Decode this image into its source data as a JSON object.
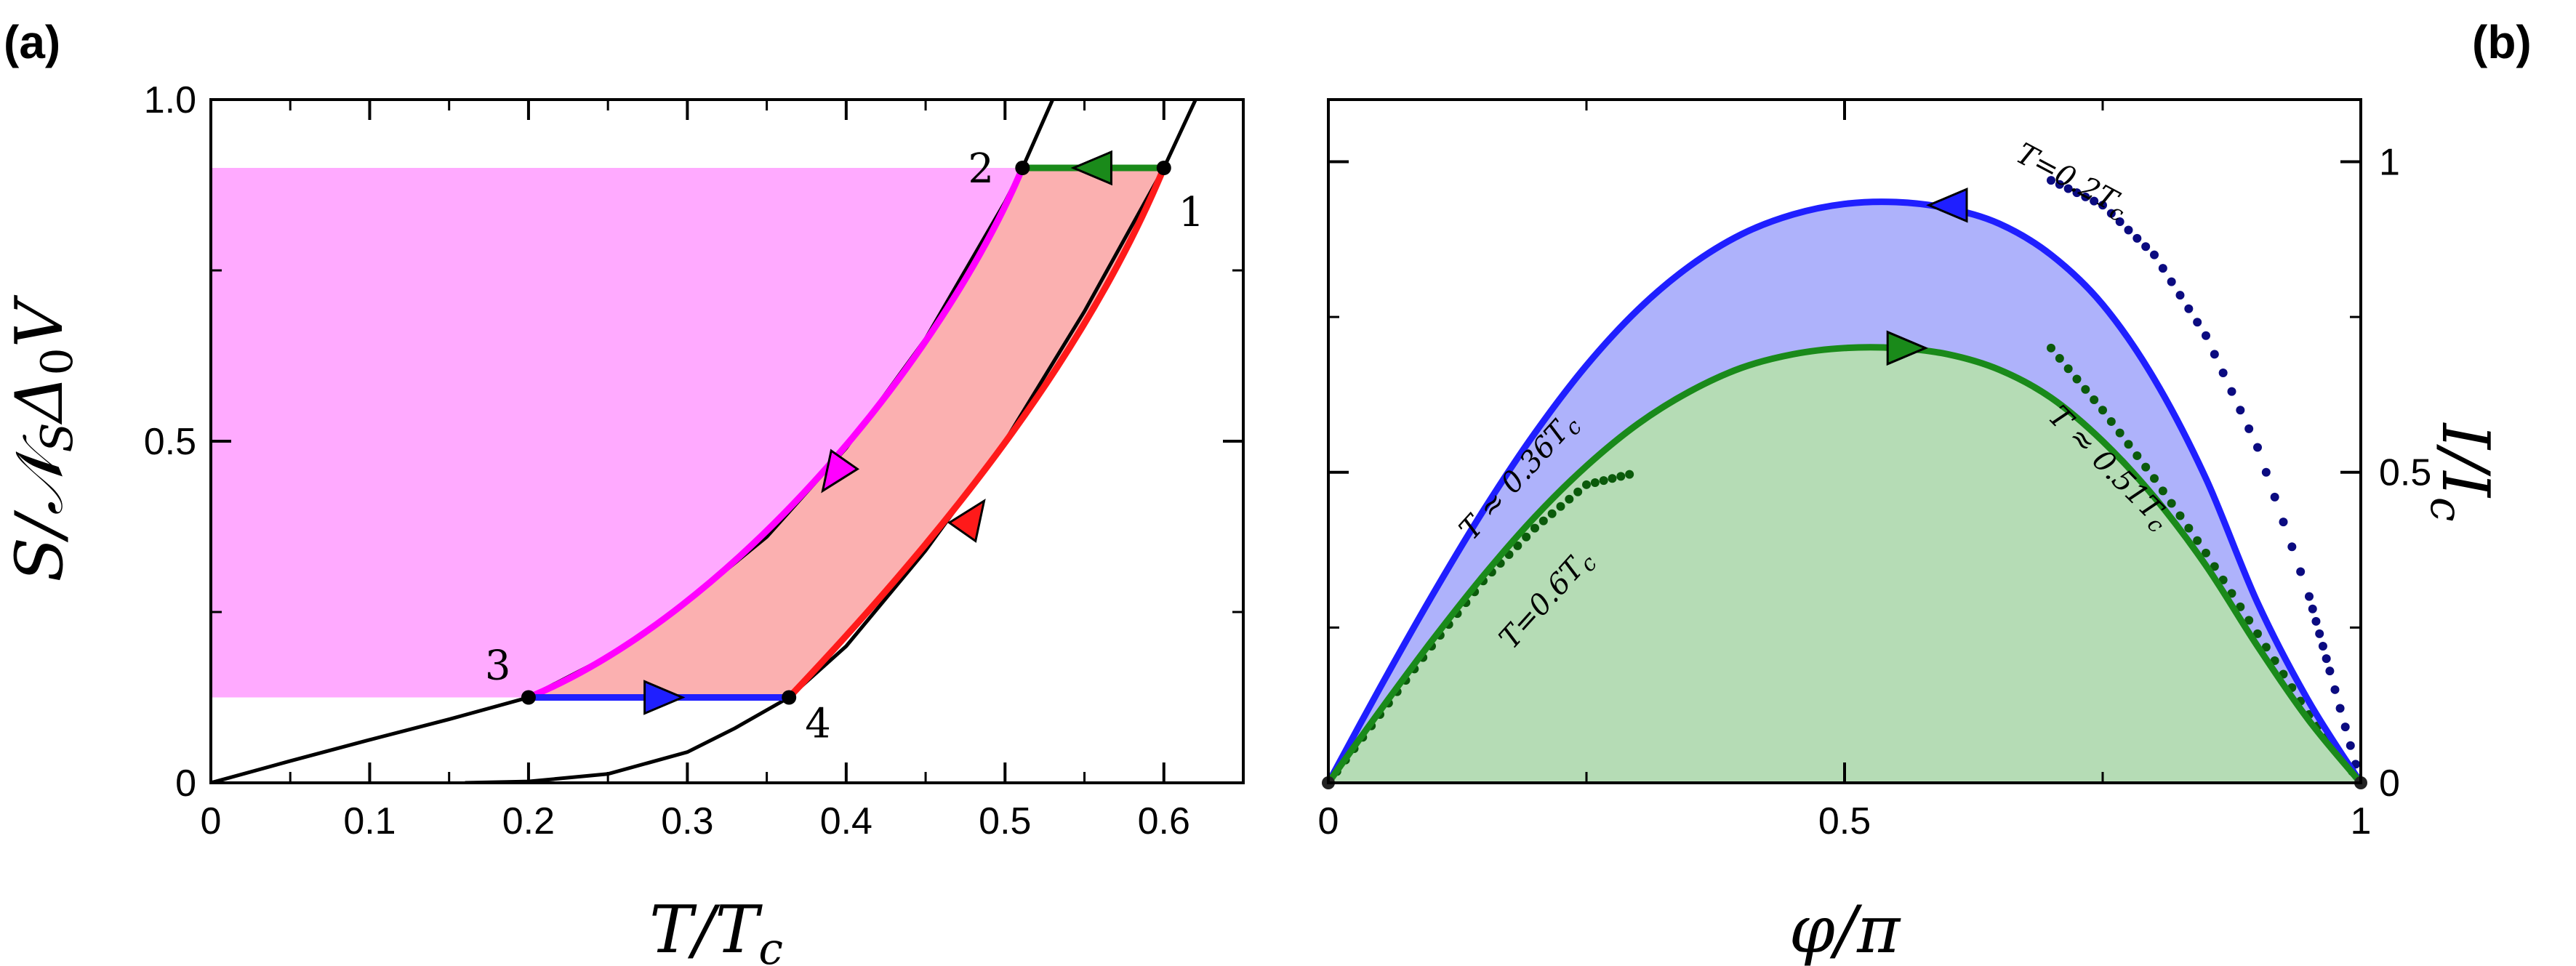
{
  "chart_data": [
    {
      "panel": "(a)",
      "type": "line",
      "xlabel": "T/T_c",
      "ylabel": "S/𝒩_S Δ₀ V",
      "xlim": [
        0,
        0.65
      ],
      "ylim": [
        0,
        1.0
      ],
      "x_ticks": [
        "0",
        "0.1",
        "0.2",
        "0.3",
        "0.4",
        "0.5",
        "0.6"
      ],
      "y_ticks": [
        "0",
        "0.5",
        "1.0"
      ],
      "series": [
        {
          "color": "#000000",
          "x": [
            0,
            0.05,
            0.1,
            0.15,
            0.2,
            0.25,
            0.3,
            0.35,
            0.4,
            0.45,
            0.5,
            0.511,
            0.53
          ],
          "y": [
            0,
            0.032,
            0.063,
            0.093,
            0.125,
            0.185,
            0.265,
            0.36,
            0.49,
            0.65,
            0.85,
            0.9,
            1.0
          ]
        },
        {
          "color": "#000000",
          "x": [
            0.16,
            0.2,
            0.25,
            0.3,
            0.33,
            0.364,
            0.4,
            0.45,
            0.5,
            0.55,
            0.6,
            0.62
          ],
          "y": [
            0,
            0.002,
            0.013,
            0.045,
            0.08,
            0.125,
            0.2,
            0.34,
            0.5,
            0.69,
            0.9,
            1.0
          ]
        }
      ],
      "cycle": {
        "points": [
          {
            "label": "1",
            "x": 0.6,
            "y": 0.9
          },
          {
            "label": "2",
            "x": 0.511,
            "y": 0.9
          },
          {
            "label": "3",
            "x": 0.2,
            "y": 0.125
          },
          {
            "label": "4",
            "x": 0.364,
            "y": 0.125
          }
        ],
        "segments": [
          {
            "from": "1",
            "to": "2",
            "color": "#1a8a1a"
          },
          {
            "from": "2",
            "to": "3",
            "color": "#ff00ff"
          },
          {
            "from": "3",
            "to": "4",
            "color": "#1f1fff"
          },
          {
            "from": "4",
            "to": "1",
            "color": "#ff1a1a"
          }
        ]
      },
      "fill_colors": {
        "magenta_region": "#ffaaff",
        "red_region": "#fbb0b0"
      }
    },
    {
      "panel": "(b)",
      "type": "line",
      "xlabel": "φ/π",
      "ylabel": "I/I_c",
      "xlim": [
        0,
        1
      ],
      "ylim": [
        0,
        1.1
      ],
      "x_ticks": [
        "0",
        "0.5",
        "1"
      ],
      "y_ticks": [
        "0",
        "0.5",
        "1"
      ],
      "series": [
        {
          "color": "#1f1fff",
          "style": "solid",
          "x": [
            0,
            0.05,
            0.1,
            0.15,
            0.2,
            0.25,
            0.3,
            0.35,
            0.4,
            0.45,
            0.5,
            0.55,
            0.6,
            0.65,
            0.7,
            0.75,
            0.8,
            0.85,
            0.9,
            0.95,
            1.0
          ],
          "y": [
            0,
            0.153,
            0.3,
            0.438,
            0.563,
            0.672,
            0.762,
            0.832,
            0.883,
            0.915,
            0.932,
            0.935,
            0.925,
            0.9,
            0.85,
            0.77,
            0.65,
            0.49,
            0.29,
            0.13,
            0
          ]
        },
        {
          "color": "#1a8a1a",
          "style": "solid",
          "x": [
            0,
            0.05,
            0.1,
            0.15,
            0.2,
            0.25,
            0.3,
            0.35,
            0.4,
            0.45,
            0.5,
            0.55,
            0.6,
            0.65,
            0.7,
            0.75,
            0.8,
            0.85,
            0.9,
            0.95,
            1.0
          ],
          "y": [
            0,
            0.116,
            0.228,
            0.333,
            0.428,
            0.51,
            0.578,
            0.63,
            0.668,
            0.69,
            0.7,
            0.7,
            0.69,
            0.665,
            0.62,
            0.55,
            0.46,
            0.35,
            0.22,
            0.1,
            0
          ]
        },
        {
          "name": "T=0.2T_c",
          "color": "#0b0b80",
          "style": "dotted",
          "x": [
            0.7,
            0.75,
            0.8,
            0.85,
            0.9,
            0.95,
            0.97,
            1.0
          ],
          "y": [
            0.97,
            0.93,
            0.85,
            0.72,
            0.54,
            0.3,
            0.18,
            0
          ]
        },
        {
          "name": "T=0.6T_c",
          "color": "#0b5a0b",
          "style": "dotted",
          "x": [
            0,
            0.05,
            0.1,
            0.15,
            0.2,
            0.25,
            0.3,
            0.7,
            0.75,
            0.8,
            0.85,
            0.9,
            0.95,
            1.0
          ],
          "y": [
            0,
            0.11,
            0.22,
            0.325,
            0.41,
            0.48,
            0.5,
            0.7,
            0.6,
            0.49,
            0.37,
            0.24,
            0.11,
            0
          ]
        }
      ],
      "curve_labels": [
        "T=0.2T_c",
        "T ≈ 0.36T_c",
        "T=0.6T_c",
        "T ≈ 0.51T_c"
      ],
      "fill_colors": {
        "blue_region": "#aeb2fb",
        "green_region": "#b5dcb5"
      }
    }
  ]
}
